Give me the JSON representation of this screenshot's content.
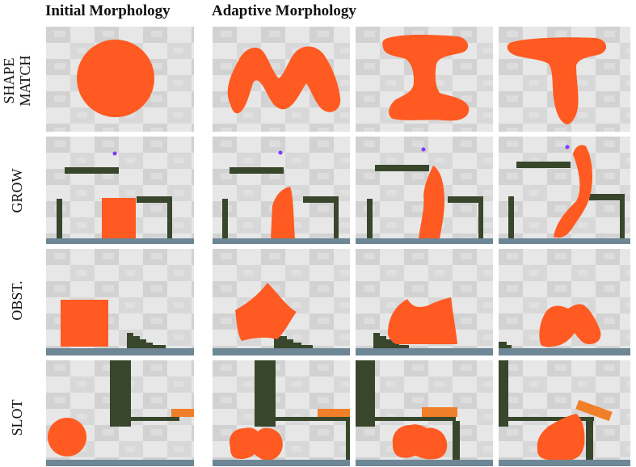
{
  "headers": {
    "initial": "Initial Morphology",
    "adaptive": "Adaptive Morphology"
  },
  "rows": [
    {
      "id": "shape-match",
      "label_line1": "SHAPE",
      "label_line2": "MATCH"
    },
    {
      "id": "grow",
      "label_line1": "GROW",
      "label_line2": ""
    },
    {
      "id": "obstacle",
      "label_line1": "OBST.",
      "label_line2": ""
    },
    {
      "id": "slot",
      "label_line1": "SLOT",
      "label_line2": ""
    }
  ],
  "colors": {
    "soft_body": "#ff5a22",
    "obstacle": "#38472b",
    "ground": "#6e8796",
    "target_dot": "#7b3cff",
    "lid": "#f07f2a",
    "background_light": "#e6e6e6",
    "background_dark": "#cfcfcf"
  }
}
